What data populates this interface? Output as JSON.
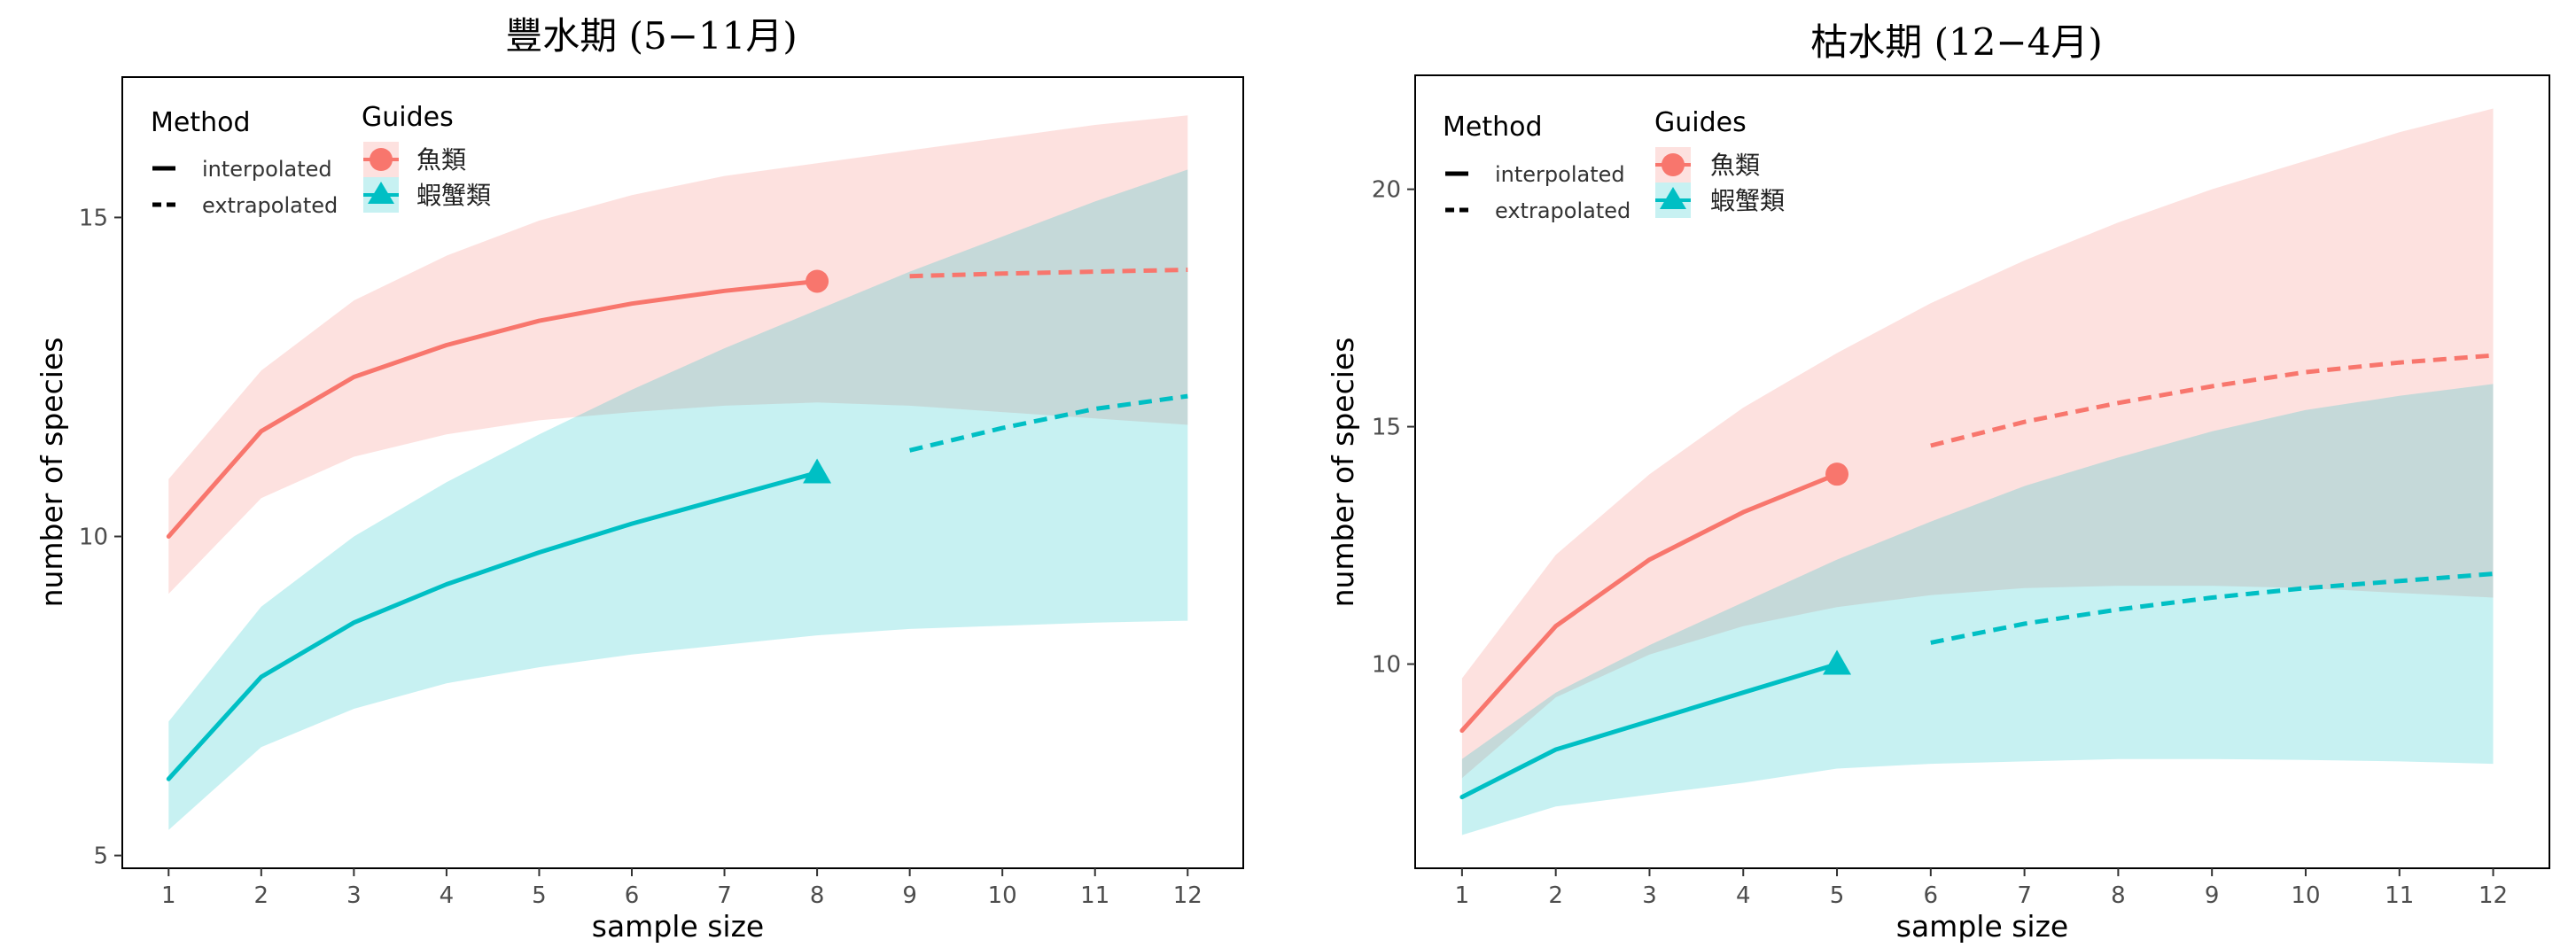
{
  "chart_data": [
    {
      "type": "line",
      "title": "豐水期 (5−11月)",
      "xlabel": "sample size",
      "ylabel": "number of species",
      "xlim": [
        0.5,
        12.6
      ],
      "ylim": [
        4.8,
        17.2
      ],
      "x_ticks": [
        1,
        2,
        3,
        4,
        5,
        6,
        7,
        8,
        9,
        10,
        11,
        12
      ],
      "y_ticks": [
        5,
        10,
        15
      ],
      "grid": false,
      "legend": {
        "placement": "top-left",
        "method_title": "Method",
        "method_items": [
          {
            "label": "interpolated",
            "linestyle": "solid"
          },
          {
            "label": "extrapolated",
            "linestyle": "dashed"
          }
        ],
        "guides_title": "Guides",
        "guides_items": [
          {
            "label": "魚類",
            "marker": "circle",
            "color": "#F8766D"
          },
          {
            "label": "蝦蟹類",
            "marker": "triangle",
            "color": "#00BFC4"
          }
        ]
      },
      "series": [
        {
          "name": "魚類",
          "color": "#F8766D",
          "band_color": "#F8766D",
          "marker": "circle",
          "observed_x": 8,
          "x": [
            1,
            2,
            3,
            4,
            5,
            6,
            7,
            8,
            9,
            10,
            11,
            12
          ],
          "y": [
            10.0,
            11.65,
            12.5,
            13.0,
            13.38,
            13.65,
            13.85,
            14.0,
            14.08,
            14.12,
            14.15,
            14.18
          ],
          "lower": [
            9.1,
            10.6,
            11.25,
            11.6,
            11.82,
            11.95,
            12.05,
            12.1,
            12.05,
            11.95,
            11.85,
            11.75
          ],
          "upper": [
            10.9,
            12.6,
            13.7,
            14.4,
            14.95,
            15.35,
            15.65,
            15.85,
            16.05,
            16.25,
            16.45,
            16.6
          ]
        },
        {
          "name": "蝦蟹類",
          "color": "#00BFC4",
          "band_color": "#00BFC4",
          "marker": "triangle",
          "observed_x": 8,
          "x": [
            1,
            2,
            3,
            4,
            5,
            6,
            7,
            8,
            9,
            10,
            11,
            12
          ],
          "y": [
            6.2,
            7.8,
            8.65,
            9.25,
            9.75,
            10.2,
            10.6,
            11.0,
            11.35,
            11.7,
            12.0,
            12.2
          ],
          "lower": [
            5.4,
            6.7,
            7.3,
            7.7,
            7.95,
            8.15,
            8.3,
            8.45,
            8.55,
            8.6,
            8.65,
            8.68
          ],
          "upper": [
            7.1,
            8.9,
            10.0,
            10.85,
            11.6,
            12.3,
            12.95,
            13.55,
            14.15,
            14.7,
            15.25,
            15.75
          ]
        }
      ]
    },
    {
      "type": "line",
      "title": "枯水期 (12−4月)",
      "xlabel": "sample size",
      "ylabel": "number of species",
      "xlim": [
        0.5,
        12.6
      ],
      "ylim": [
        5.7,
        22.4
      ],
      "x_ticks": [
        1,
        2,
        3,
        4,
        5,
        6,
        7,
        8,
        9,
        10,
        11,
        12
      ],
      "y_ticks": [
        10,
        15,
        20
      ],
      "grid": false,
      "legend": {
        "placement": "top-left",
        "method_title": "Method",
        "method_items": [
          {
            "label": "interpolated",
            "linestyle": "solid"
          },
          {
            "label": "extrapolated",
            "linestyle": "dashed"
          }
        ],
        "guides_title": "Guides",
        "guides_items": [
          {
            "label": "魚類",
            "marker": "circle",
            "color": "#F8766D"
          },
          {
            "label": "蝦蟹類",
            "marker": "triangle",
            "color": "#00BFC4"
          }
        ]
      },
      "series": [
        {
          "name": "魚類",
          "color": "#F8766D",
          "band_color": "#F8766D",
          "marker": "circle",
          "observed_x": 5,
          "x": [
            1,
            2,
            3,
            4,
            5,
            6,
            7,
            8,
            9,
            10,
            11,
            12
          ],
          "y": [
            8.6,
            10.8,
            12.2,
            13.2,
            14.0,
            14.6,
            15.1,
            15.5,
            15.85,
            16.15,
            16.35,
            16.5
          ],
          "lower": [
            7.6,
            9.3,
            10.2,
            10.8,
            11.2,
            11.45,
            11.6,
            11.65,
            11.65,
            11.6,
            11.5,
            11.4
          ],
          "upper": [
            9.7,
            12.3,
            14.0,
            15.4,
            16.55,
            17.6,
            18.5,
            19.3,
            20.0,
            20.6,
            21.2,
            21.7
          ]
        },
        {
          "name": "蝦蟹類",
          "color": "#00BFC4",
          "band_color": "#00BFC4",
          "marker": "triangle",
          "observed_x": 5,
          "x": [
            1,
            2,
            3,
            4,
            5,
            6,
            7,
            8,
            9,
            10,
            11,
            12
          ],
          "y": [
            7.2,
            8.2,
            8.8,
            9.4,
            10.0,
            10.45,
            10.85,
            11.15,
            11.4,
            11.6,
            11.75,
            11.9
          ],
          "lower": [
            6.4,
            7.0,
            7.25,
            7.5,
            7.8,
            7.9,
            7.95,
            8.0,
            8.0,
            7.98,
            7.95,
            7.9
          ],
          "upper": [
            8.0,
            9.4,
            10.4,
            11.3,
            12.2,
            13.0,
            13.75,
            14.35,
            14.9,
            15.35,
            15.65,
            15.9
          ]
        }
      ]
    }
  ]
}
